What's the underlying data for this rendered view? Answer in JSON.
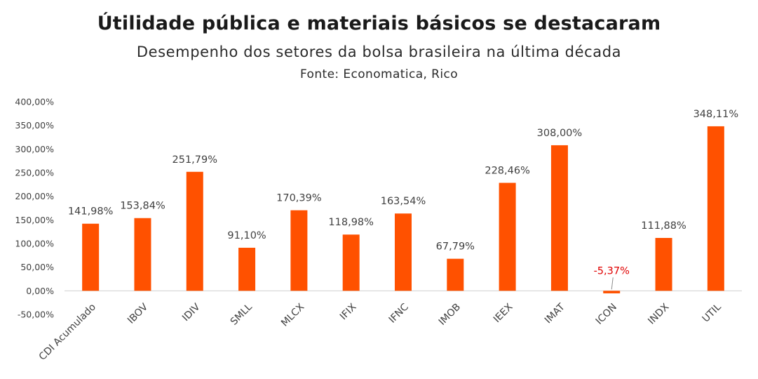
{
  "chart_data": {
    "type": "bar",
    "title": "Útilidade pública e materiais básicos se destacaram",
    "subtitle": "Desempenho dos setores da bolsa brasileira na última década",
    "source": "Fonte: Economatica, Rico",
    "categories": [
      "CDI Acumulado",
      "IBOV",
      "IDIV",
      "SMLL",
      "MLCX",
      "IFIX",
      "IFNC",
      "IMOB",
      "IEEX",
      "IMAT",
      "ICON",
      "INDX",
      "UTIL"
    ],
    "values": [
      141.98,
      153.84,
      251.79,
      91.1,
      170.39,
      118.98,
      163.54,
      67.79,
      228.46,
      308.0,
      -5.37,
      111.88,
      348.11
    ],
    "data_labels": [
      "141,98%",
      "153,84%",
      "251,79%",
      "91,10%",
      "170,39%",
      "118,98%",
      "163,54%",
      "67,79%",
      "228,46%",
      "308,00%",
      "-5,37%",
      "111,88%",
      "348,11%"
    ],
    "y_ticks": [
      "-50,00%",
      "0,00%",
      "50,00%",
      "100,00%",
      "150,00%",
      "200,00%",
      "250,00%",
      "300,00%",
      "350,00%",
      "400,00%"
    ],
    "ylim": [
      -50,
      400
    ],
    "xlabel": "",
    "ylabel": "",
    "grid": false,
    "legend": "none",
    "colors": {
      "bar": "#ff5100",
      "negative_label": "#e00000",
      "label": "#404040",
      "axis": "#d0d0d0"
    }
  }
}
